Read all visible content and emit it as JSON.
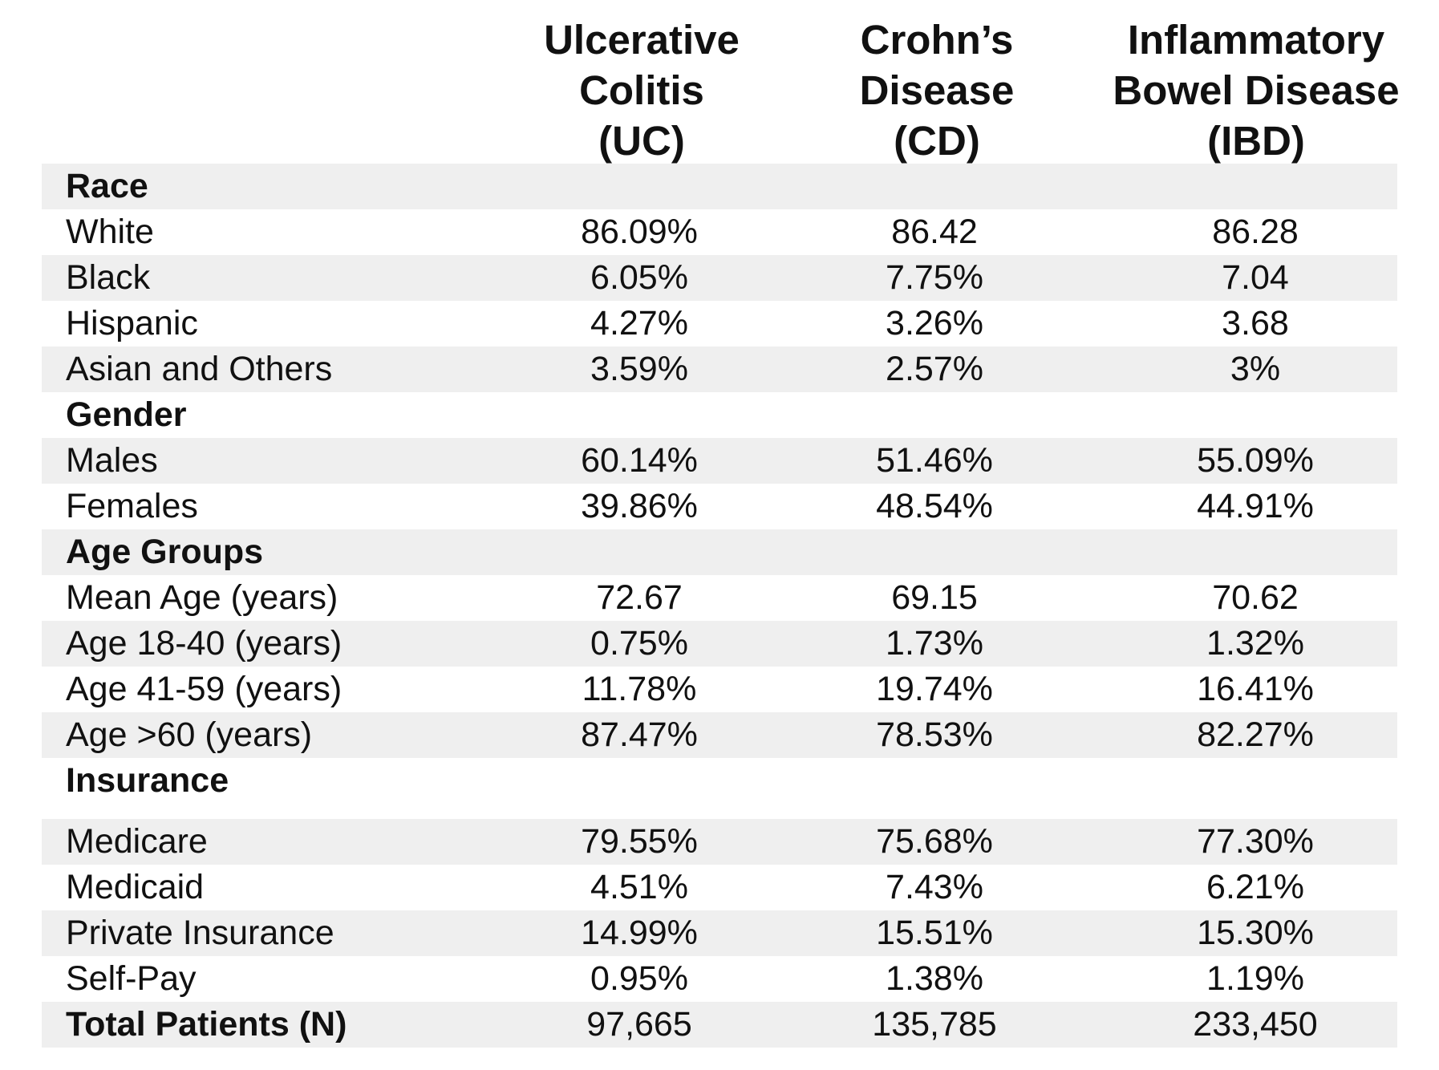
{
  "header": {
    "uc": [
      "Ulcerative",
      "Colitis",
      "(UC)"
    ],
    "cd": [
      "Crohn’s",
      "Disease",
      "(CD)"
    ],
    "ibd": [
      "Inflammatory",
      "Bowel Disease",
      "(IBD)"
    ]
  },
  "rows": [
    {
      "label": "Race",
      "section": true,
      "values": [
        "",
        "",
        ""
      ]
    },
    {
      "label": "White",
      "section": false,
      "values": [
        "86.09%",
        "86.42",
        "86.28"
      ]
    },
    {
      "label": "Black",
      "section": false,
      "values": [
        "6.05%",
        "7.75%",
        "7.04"
      ]
    },
    {
      "label": "Hispanic",
      "section": false,
      "values": [
        "4.27%",
        "3.26%",
        "3.68"
      ]
    },
    {
      "label": "Asian and Others",
      "section": false,
      "values": [
        "3.59%",
        "2.57%",
        "3%"
      ]
    },
    {
      "label": "Gender",
      "section": true,
      "values": [
        "",
        "",
        ""
      ]
    },
    {
      "label": "Males",
      "section": false,
      "values": [
        "60.14%",
        "51.46%",
        "55.09%"
      ]
    },
    {
      "label": "Females",
      "section": false,
      "values": [
        "39.86%",
        "48.54%",
        "44.91%"
      ]
    },
    {
      "label": "Age Groups",
      "section": true,
      "values": [
        "",
        "",
        ""
      ]
    },
    {
      "label": "Mean Age (years)",
      "section": false,
      "values": [
        "72.67",
        "69.15",
        "70.62"
      ]
    },
    {
      "label": "Age 18-40 (years)",
      "section": false,
      "values": [
        "0.75%",
        "1.73%",
        "1.32%"
      ]
    },
    {
      "label": "Age 41-59 (years)",
      "section": false,
      "values": [
        "11.78%",
        "19.74%",
        "16.41%"
      ]
    },
    {
      "label": "Age >60 (years)",
      "section": false,
      "values": [
        "87.47%",
        "78.53%",
        "82.27%"
      ]
    },
    {
      "label": "Insurance",
      "section": true,
      "values": [
        "",
        "",
        ""
      ]
    },
    {
      "label": "Medicare",
      "section": false,
      "values": [
        "79.55%",
        "75.68%",
        "77.30%"
      ]
    },
    {
      "label": "Medicaid",
      "section": false,
      "values": [
        "4.51%",
        "7.43%",
        "6.21%"
      ]
    },
    {
      "label": "Private Insurance",
      "section": false,
      "values": [
        "14.99%",
        "15.51%",
        "15.30%"
      ]
    },
    {
      "label": "Self-Pay",
      "section": false,
      "values": [
        "0.95%",
        "1.38%",
        "1.19%"
      ]
    },
    {
      "label": "Total Patients (N)",
      "section": true,
      "values": [
        "97,665",
        "135,785",
        "233,450"
      ]
    }
  ]
}
